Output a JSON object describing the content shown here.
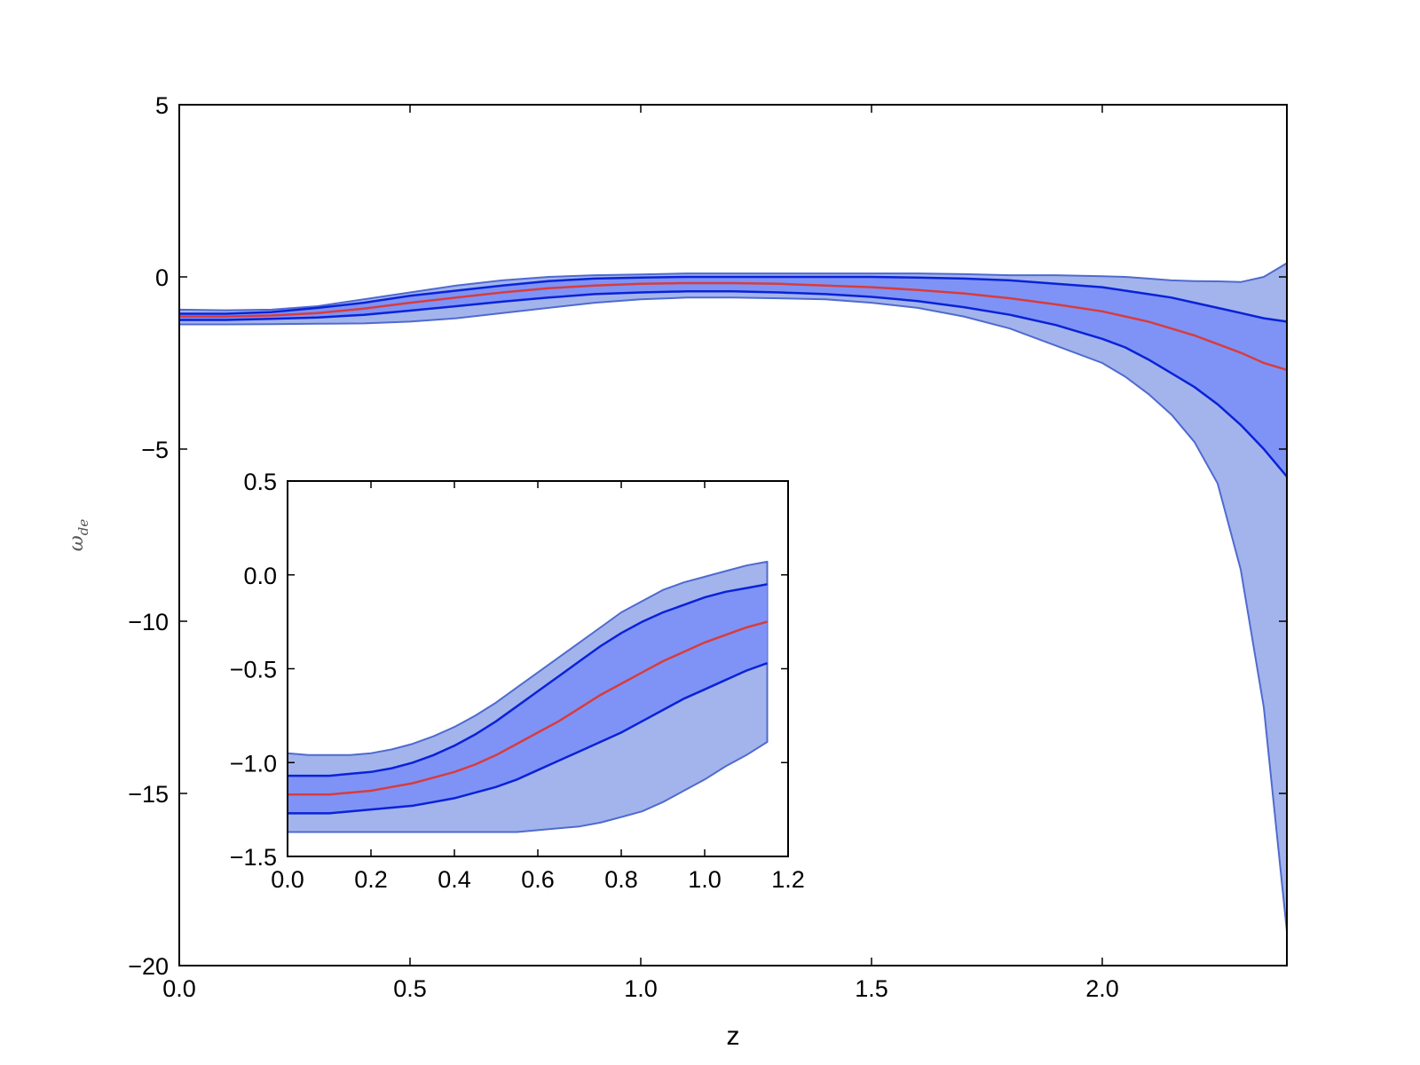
{
  "chart_data": [
    {
      "id": "main",
      "type": "area",
      "xlabel": "z",
      "ylabel": "ω",
      "ylabel_sub": "de",
      "xlim": [
        0,
        2.4
      ],
      "ylim": [
        -20,
        5
      ],
      "xticks": [
        0.0,
        0.5,
        1.0,
        1.5,
        2.0
      ],
      "xtick_labels": [
        "0.0",
        "0.5",
        "1.0",
        "1.5",
        "2.0"
      ],
      "yticks": [
        5,
        0,
        -5,
        -10,
        -15,
        -20
      ],
      "ytick_labels": [
        "5",
        "0",
        "−5",
        "−10",
        "−15",
        "−20"
      ],
      "grid": false,
      "colors": {
        "outer_band": "#a3b4ec",
        "inner_band": "#7f93f6",
        "sigma_line": "#0a22d8",
        "band_edge": "#4f6ad0",
        "mean_line": "#d83c3c"
      },
      "x": [
        0,
        0.1,
        0.2,
        0.3,
        0.4,
        0.5,
        0.6,
        0.7,
        0.8,
        0.9,
        1.0,
        1.1,
        1.2,
        1.3,
        1.4,
        1.5,
        1.6,
        1.7,
        1.8,
        1.9,
        2.0,
        2.05,
        2.1,
        2.15,
        2.2,
        2.25,
        2.3,
        2.35,
        2.4
      ],
      "series": [
        {
          "role": "upper_2sigma",
          "values": [
            -0.95,
            -0.97,
            -0.95,
            -0.85,
            -0.65,
            -0.45,
            -0.25,
            -0.1,
            0.0,
            0.05,
            0.07,
            0.1,
            0.1,
            0.1,
            0.1,
            0.1,
            0.1,
            0.08,
            0.05,
            0.05,
            0.02,
            0.0,
            -0.05,
            -0.1,
            -0.12,
            -0.13,
            -0.15,
            0.0,
            0.4
          ]
        },
        {
          "role": "upper_1sigma",
          "values": [
            -1.07,
            -1.07,
            -1.02,
            -0.9,
            -0.75,
            -0.55,
            -0.4,
            -0.25,
            -0.12,
            -0.05,
            -0.02,
            0.0,
            0.0,
            0.0,
            0.0,
            0.0,
            -0.02,
            -0.05,
            -0.1,
            -0.2,
            -0.3,
            -0.4,
            -0.5,
            -0.6,
            -0.75,
            -0.9,
            -1.05,
            -1.2,
            -1.3
          ]
        },
        {
          "role": "mean",
          "values": [
            -1.15,
            -1.15,
            -1.12,
            -1.05,
            -0.92,
            -0.75,
            -0.6,
            -0.45,
            -0.33,
            -0.25,
            -0.2,
            -0.18,
            -0.18,
            -0.2,
            -0.25,
            -0.3,
            -0.38,
            -0.48,
            -0.62,
            -0.8,
            -1.0,
            -1.15,
            -1.3,
            -1.5,
            -1.7,
            -1.95,
            -2.2,
            -2.5,
            -2.7
          ]
        },
        {
          "role": "lower_1sigma",
          "values": [
            -1.25,
            -1.25,
            -1.22,
            -1.18,
            -1.1,
            -0.98,
            -0.85,
            -0.72,
            -0.6,
            -0.5,
            -0.45,
            -0.42,
            -0.42,
            -0.45,
            -0.5,
            -0.58,
            -0.7,
            -0.88,
            -1.1,
            -1.4,
            -1.8,
            -2.05,
            -2.4,
            -2.8,
            -3.2,
            -3.7,
            -4.3,
            -5.0,
            -5.8
          ]
        },
        {
          "role": "lower_2sigma",
          "values": [
            -1.38,
            -1.38,
            -1.37,
            -1.36,
            -1.35,
            -1.3,
            -1.2,
            -1.05,
            -0.9,
            -0.75,
            -0.65,
            -0.6,
            -0.6,
            -0.62,
            -0.65,
            -0.75,
            -0.9,
            -1.15,
            -1.5,
            -2.0,
            -2.5,
            -2.9,
            -3.4,
            -4.0,
            -4.8,
            -6.0,
            -8.5,
            -12.5,
            -19.0
          ]
        }
      ]
    },
    {
      "id": "inset",
      "type": "area",
      "xlim": [
        0,
        1.2
      ],
      "ylim": [
        -1.5,
        0.5
      ],
      "xticks": [
        0.0,
        0.2,
        0.4,
        0.6,
        0.8,
        1.0,
        1.2
      ],
      "xtick_labels": [
        "0.0",
        "0.2",
        "0.4",
        "0.6",
        "0.8",
        "1.0",
        "1.2"
      ],
      "yticks": [
        0.5,
        0.0,
        -0.5,
        -1.0,
        -1.5
      ],
      "ytick_labels": [
        "0.5",
        "0.0",
        "−0.5",
        "−1.0",
        "−1.5"
      ],
      "grid": false,
      "x": [
        0,
        0.05,
        0.1,
        0.15,
        0.2,
        0.25,
        0.3,
        0.35,
        0.4,
        0.45,
        0.5,
        0.55,
        0.6,
        0.65,
        0.7,
        0.75,
        0.8,
        0.85,
        0.9,
        0.95,
        1.0,
        1.05,
        1.1,
        1.15
      ],
      "series": [
        {
          "role": "upper_2sigma",
          "values": [
            -0.95,
            -0.96,
            -0.96,
            -0.96,
            -0.95,
            -0.93,
            -0.9,
            -0.86,
            -0.81,
            -0.75,
            -0.68,
            -0.6,
            -0.52,
            -0.44,
            -0.36,
            -0.28,
            -0.2,
            -0.14,
            -0.08,
            -0.04,
            -0.01,
            0.02,
            0.05,
            0.07
          ]
        },
        {
          "role": "upper_1sigma",
          "values": [
            -1.07,
            -1.07,
            -1.07,
            -1.06,
            -1.05,
            -1.03,
            -1.0,
            -0.96,
            -0.91,
            -0.85,
            -0.78,
            -0.7,
            -0.62,
            -0.54,
            -0.46,
            -0.38,
            -0.31,
            -0.25,
            -0.2,
            -0.16,
            -0.12,
            -0.09,
            -0.07,
            -0.05
          ]
        },
        {
          "role": "mean",
          "values": [
            -1.17,
            -1.17,
            -1.17,
            -1.16,
            -1.15,
            -1.13,
            -1.11,
            -1.08,
            -1.05,
            -1.01,
            -0.96,
            -0.9,
            -0.84,
            -0.78,
            -0.71,
            -0.64,
            -0.58,
            -0.52,
            -0.46,
            -0.41,
            -0.36,
            -0.32,
            -0.28,
            -0.25
          ]
        },
        {
          "role": "lower_1sigma",
          "values": [
            -1.27,
            -1.27,
            -1.27,
            -1.26,
            -1.25,
            -1.24,
            -1.23,
            -1.21,
            -1.19,
            -1.16,
            -1.13,
            -1.09,
            -1.04,
            -0.99,
            -0.94,
            -0.89,
            -0.84,
            -0.78,
            -0.72,
            -0.66,
            -0.61,
            -0.56,
            -0.51,
            -0.47
          ]
        },
        {
          "role": "lower_2sigma",
          "values": [
            -1.37,
            -1.37,
            -1.37,
            -1.37,
            -1.37,
            -1.37,
            -1.37,
            -1.37,
            -1.37,
            -1.37,
            -1.37,
            -1.37,
            -1.36,
            -1.35,
            -1.34,
            -1.32,
            -1.29,
            -1.26,
            -1.21,
            -1.15,
            -1.09,
            -1.02,
            -0.96,
            -0.89
          ]
        }
      ]
    }
  ]
}
